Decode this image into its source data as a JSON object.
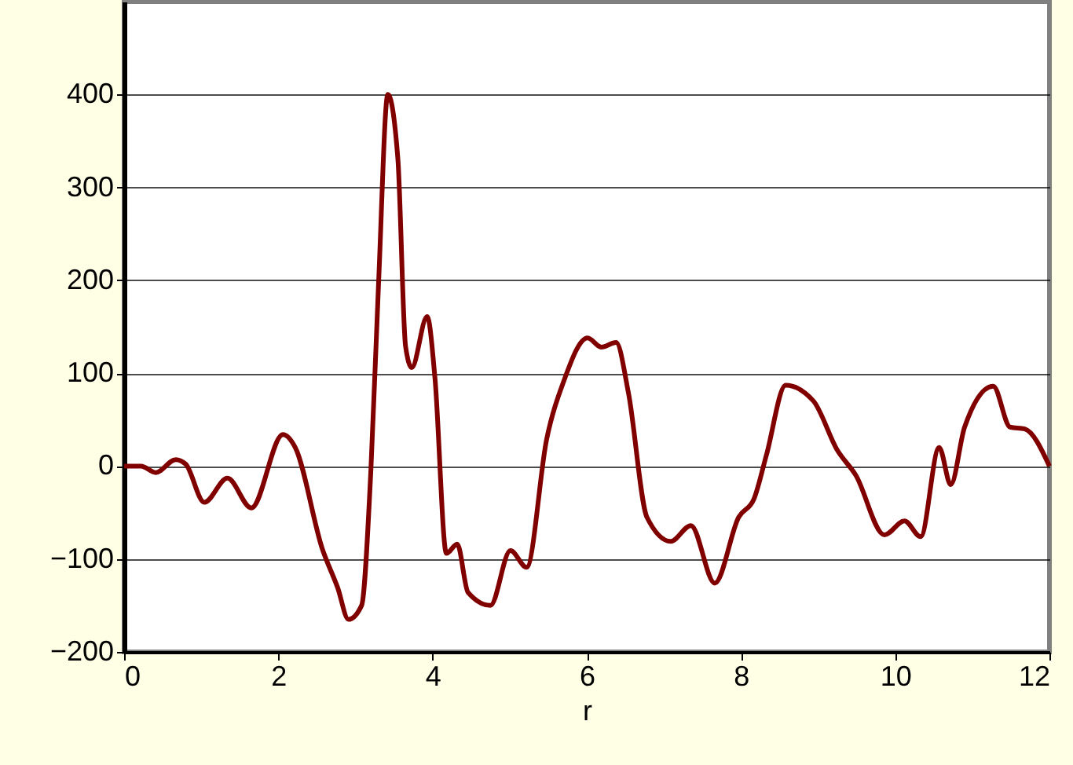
{
  "chart_data": {
    "type": "line",
    "xlabel": "r",
    "x": [
      0,
      0.22,
      0.41,
      0.67,
      0.8,
      1.04,
      1.34,
      1.65,
      2.06,
      2.22,
      2.57,
      2.77,
      2.91,
      3.08,
      3.2,
      3.3,
      3.42,
      3.55,
      3.65,
      3.73,
      3.93,
      4.03,
      4.18,
      4.32,
      4.46,
      4.75,
      5.01,
      5.22,
      5.48,
      5.7,
      6.01,
      6.19,
      6.38,
      6.54,
      6.78,
      7.09,
      7.35,
      7.66,
      7.97,
      8.17,
      8.33,
      8.58,
      8.94,
      9.25,
      9.49,
      9.86,
      10.12,
      10.33,
      10.57,
      10.72,
      10.9,
      11.27,
      11.49,
      11.68,
      12
    ],
    "series": [
      {
        "color": "#800000",
        "values": [
          0,
          0,
          -7,
          7,
          2,
          -39,
          -13,
          -45,
          34,
          20,
          -89,
          -131,
          -165,
          -150,
          -5,
          197,
          400,
          331,
          129,
          106,
          161,
          96,
          -94,
          -84,
          -136,
          -150,
          -91,
          -109,
          29,
          91,
          138,
          128,
          133,
          79,
          -55,
          -81,
          -64,
          -126,
          -55,
          -35,
          12,
          87,
          70,
          17,
          -10,
          -74,
          -59,
          -76,
          20,
          -20,
          42,
          86,
          42,
          40,
          0
        ]
      }
    ],
    "xlim": [
      0,
      12
    ],
    "xticks": [
      0,
      2,
      4,
      6,
      8,
      10,
      12
    ],
    "ylim": [
      -200,
      500
    ],
    "yticks": [
      -200,
      -100,
      0,
      100,
      200,
      300,
      400
    ],
    "grid": "y",
    "marker": "none",
    "line_style": "solid"
  }
}
